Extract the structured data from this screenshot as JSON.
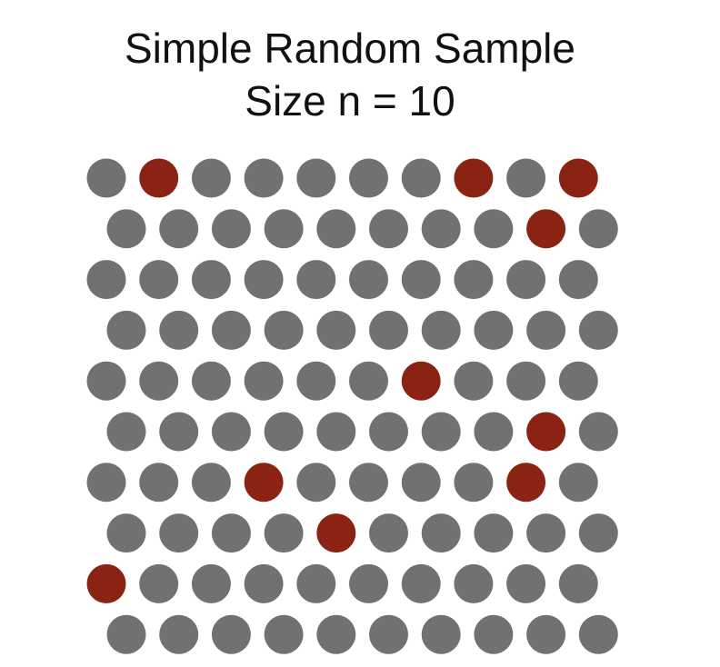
{
  "title": {
    "line1": "Simple Random Sample",
    "line2": "Size n = 10"
  },
  "colors": {
    "population": "#737070",
    "sampled": "#8b2315"
  },
  "population": {
    "rows": 10,
    "columns": 10,
    "sampled_cells": [
      [
        0,
        1
      ],
      [
        0,
        7
      ],
      [
        0,
        9
      ],
      [
        1,
        8
      ],
      [
        4,
        6
      ],
      [
        5,
        8
      ],
      [
        6,
        3
      ],
      [
        6,
        8
      ],
      [
        7,
        4
      ],
      [
        8,
        0
      ]
    ]
  }
}
